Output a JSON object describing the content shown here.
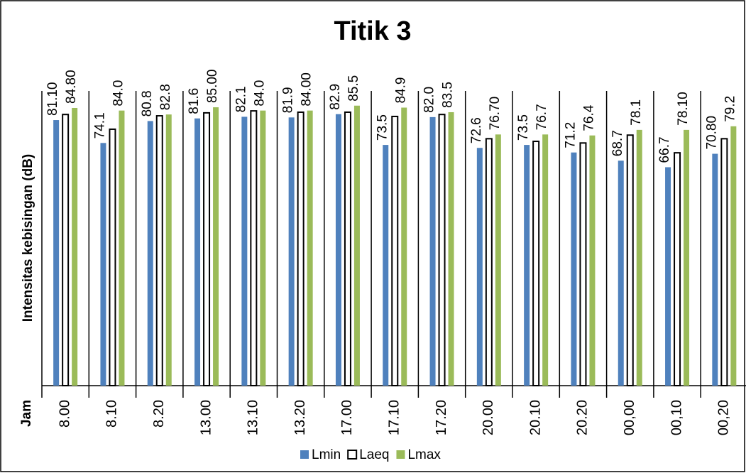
{
  "chart_data": {
    "type": "bar",
    "title": "Titik 3",
    "y_label": "Intensitas kebisingan (dB)",
    "x_label": "Jam",
    "categories": [
      "8.00",
      "8.10",
      "8.20",
      "13.00",
      "13.10",
      "13.20",
      "17.00",
      "17.10",
      "17.20",
      "20.00",
      "20.10",
      "20.20",
      "00,00",
      "00,10",
      "00,20"
    ],
    "series": [
      {
        "name": "Lmin",
        "color": "#4f81bd",
        "values": [
          81.1,
          74.1,
          80.8,
          81.6,
          82.1,
          81.9,
          82.9,
          73.5,
          82.0,
          72.6,
          73.5,
          71.2,
          68.7,
          66.7,
          70.8
        ],
        "value_labels": [
          "81.10",
          "74.1",
          "80.8",
          "81.6",
          "82.1",
          "81.9",
          "82.9",
          "73.5",
          "82.0",
          "72.6",
          "73.5",
          "71.2",
          "68.7",
          "66.7",
          "70.80"
        ]
      },
      {
        "name": "Laeq",
        "color": "#ffffff",
        "values": [
          82.8,
          78.3,
          82.4,
          83.3,
          83.9,
          83.5,
          83.5,
          82.2,
          82.8,
          75.4,
          74.6,
          74.1,
          76.5,
          71.1,
          75.4
        ]
      },
      {
        "name": "Lmax",
        "color": "#9bbb59",
        "values": [
          84.8,
          84.0,
          82.8,
          85.0,
          84.0,
          84.0,
          85.5,
          84.9,
          83.5,
          76.7,
          76.7,
          76.4,
          78.1,
          78.1,
          79.2
        ],
        "value_labels": [
          "84.80",
          "84.0",
          "82.8",
          "85.00",
          "84.0",
          "84.00",
          "85.5",
          "84.9",
          "83.5",
          "76.70",
          "76.7",
          "76.4",
          "78.1",
          "78.10",
          "79.2"
        ]
      }
    ],
    "ylim": [
      0,
      90
    ],
    "legend": "bottom"
  }
}
